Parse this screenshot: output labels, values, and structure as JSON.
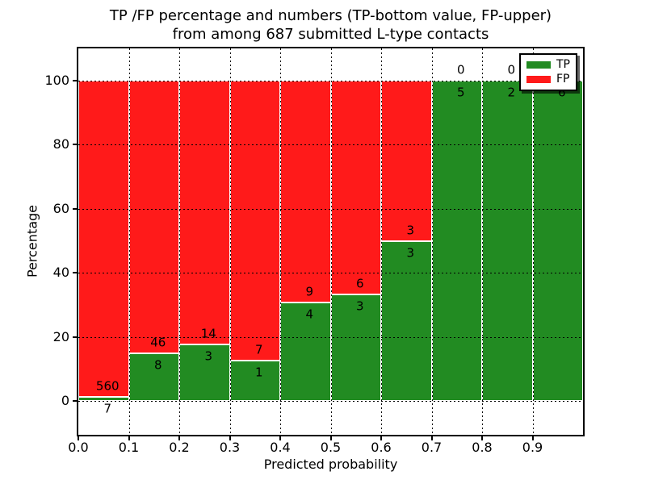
{
  "title": {
    "line1": "TP /FP percentage and numbers (TP-bottom value, FP-upper)",
    "line2": "from among 687 submitted L-type contacts"
  },
  "axes": {
    "x_label": "Predicted probability",
    "y_label": "Percentage",
    "x_tick_labels": [
      "0.0",
      "0.1",
      "0.2",
      "0.3",
      "0.4",
      "0.5",
      "0.6",
      "0.7",
      "0.8",
      "0.9"
    ],
    "y_tick_labels": [
      "0",
      "20",
      "40",
      "60",
      "80",
      "100"
    ],
    "y_tick_values": [
      0,
      20,
      40,
      60,
      80,
      100
    ]
  },
  "legend": {
    "position": "upper right",
    "items": [
      {
        "label": "TP",
        "color": "#228b22"
      },
      {
        "label": "FP",
        "color": "#ff1a1a"
      }
    ]
  },
  "colors": {
    "tp": "#228b22",
    "fp": "#ff1a1a",
    "grid": "#000000",
    "background": "#ffffff"
  },
  "chart_data": {
    "type": "bar",
    "stacked": true,
    "title": "TP /FP percentage and numbers (TP-bottom value, FP-upper) from among 687 submitted L-type contacts",
    "xlabel": "Predicted probability",
    "ylabel": "Percentage",
    "total_contacts": 687,
    "x_range": [
      0.0,
      1.0
    ],
    "x_bin_width": 0.1,
    "y_ticks": [
      0,
      20,
      40,
      60,
      80,
      100
    ],
    "grid": "dotted, drawn above bars",
    "legend_position": "upper right",
    "series": [
      {
        "name": "TP",
        "color": "#228b22",
        "counts": [
          7,
          8,
          3,
          1,
          4,
          3,
          3,
          5,
          2,
          6
        ]
      },
      {
        "name": "FP",
        "color": "#ff1a1a",
        "counts": [
          560,
          46,
          14,
          7,
          9,
          6,
          3,
          0,
          0,
          0
        ]
      }
    ],
    "bins": [
      {
        "x_start": 0.0,
        "x_end": 0.1,
        "tp": 7,
        "fp": 560,
        "tp_pct": 1.23,
        "fp_pct": 98.77
      },
      {
        "x_start": 0.1,
        "x_end": 0.2,
        "tp": 8,
        "fp": 46,
        "tp_pct": 14.81,
        "fp_pct": 85.19
      },
      {
        "x_start": 0.2,
        "x_end": 0.3,
        "tp": 3,
        "fp": 14,
        "tp_pct": 17.65,
        "fp_pct": 82.35
      },
      {
        "x_start": 0.3,
        "x_end": 0.4,
        "tp": 1,
        "fp": 7,
        "tp_pct": 12.5,
        "fp_pct": 87.5
      },
      {
        "x_start": 0.4,
        "x_end": 0.5,
        "tp": 4,
        "fp": 9,
        "tp_pct": 30.77,
        "fp_pct": 69.23
      },
      {
        "x_start": 0.5,
        "x_end": 0.6,
        "tp": 3,
        "fp": 6,
        "tp_pct": 33.33,
        "fp_pct": 66.67
      },
      {
        "x_start": 0.6,
        "x_end": 0.7,
        "tp": 3,
        "fp": 3,
        "tp_pct": 50.0,
        "fp_pct": 50.0
      },
      {
        "x_start": 0.7,
        "x_end": 0.8,
        "tp": 5,
        "fp": 0,
        "tp_pct": 100.0,
        "fp_pct": 0.0
      },
      {
        "x_start": 0.8,
        "x_end": 0.9,
        "tp": 2,
        "fp": 0,
        "tp_pct": 100.0,
        "fp_pct": 0.0
      },
      {
        "x_start": 0.9,
        "x_end": 1.0,
        "tp": 6,
        "fp": 0,
        "tp_pct": 100.0,
        "fp_pct": 0.0
      }
    ]
  }
}
